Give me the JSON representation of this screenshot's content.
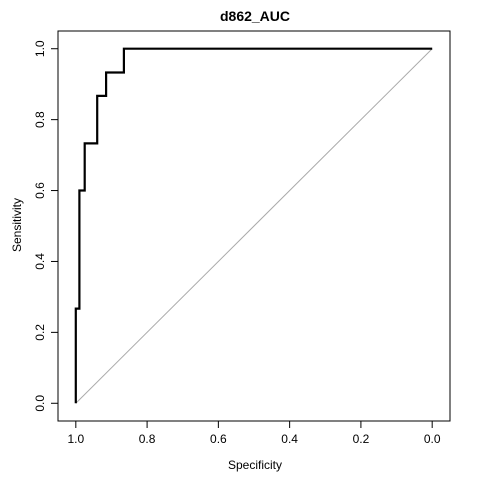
{
  "chart_data": {
    "type": "line",
    "title": "d862_AUC",
    "xlabel": "Specificity",
    "ylabel": "Sensitivity",
    "xlim": [
      1.05,
      -0.05
    ],
    "ylim": [
      -0.05,
      1.05
    ],
    "x_reversed": true,
    "grid": false,
    "legend": "none",
    "x_ticks": [
      1.0,
      0.8,
      0.6,
      0.4,
      0.2,
      0.0
    ],
    "x_tick_labels": [
      "1.0",
      "0.8",
      "0.6",
      "0.4",
      "0.2",
      "0.0"
    ],
    "y_ticks": [
      0.0,
      0.2,
      0.4,
      0.6,
      0.8,
      1.0
    ],
    "y_tick_labels": [
      "0.0",
      "0.2",
      "0.4",
      "0.6",
      "0.8",
      "1.0"
    ],
    "reference_line": {
      "from": [
        1.0,
        0.0
      ],
      "to": [
        0.0,
        1.0
      ],
      "color": "#aaaaaa"
    },
    "series": [
      {
        "color": "#000000",
        "points": [
          [
            1.0,
            0.0
          ],
          [
            1.0,
            0.267
          ],
          [
            0.99,
            0.267
          ],
          [
            0.99,
            0.6
          ],
          [
            0.975,
            0.6
          ],
          [
            0.975,
            0.733
          ],
          [
            0.94,
            0.733
          ],
          [
            0.94,
            0.867
          ],
          [
            0.915,
            0.867
          ],
          [
            0.915,
            0.933
          ],
          [
            0.865,
            0.933
          ],
          [
            0.865,
            1.0
          ],
          [
            0.0,
            1.0
          ]
        ]
      }
    ]
  }
}
